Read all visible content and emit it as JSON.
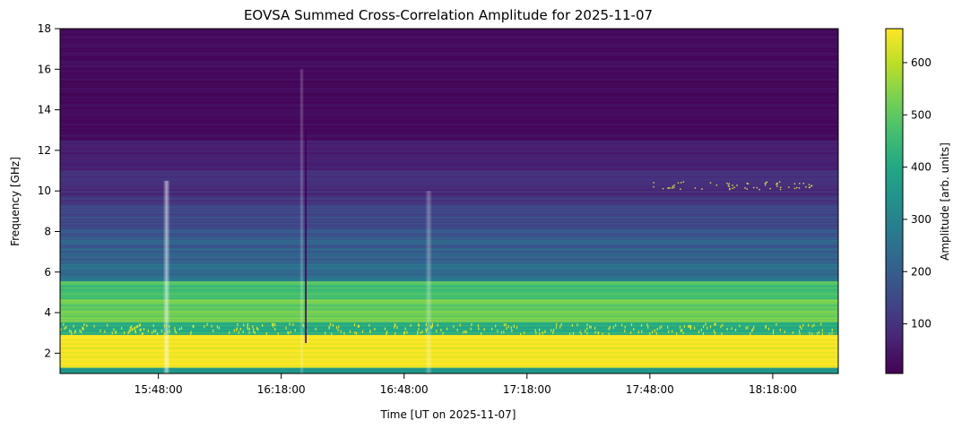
{
  "chart_data": {
    "type": "heatmap",
    "title": "EOVSA Summed Cross-Correlation Amplitude for 2025-11-07",
    "xlabel": "Time [UT on 2025-11-07]",
    "ylabel": "Frequency [GHz]",
    "x_range": [
      "15:24:00",
      "18:34:00"
    ],
    "x_ticks": [
      "15:48:00",
      "16:18:00",
      "16:48:00",
      "17:18:00",
      "17:48:00",
      "18:18:00"
    ],
    "y_range": [
      1,
      18
    ],
    "y_ticks": [
      "2",
      "4",
      "6",
      "8",
      "10",
      "12",
      "14",
      "16",
      "18"
    ],
    "colorbar": {
      "label": "Amplitude [arb. units]",
      "range": [
        5,
        665
      ],
      "ticks": [
        "100",
        "200",
        "300",
        "400",
        "500",
        "600"
      ],
      "colormap": "viridis"
    },
    "features": {
      "bursts": [
        "15:50:00",
        "16:23:00",
        "16:54:00"
      ],
      "dropout_time": "16:24:00"
    }
  }
}
